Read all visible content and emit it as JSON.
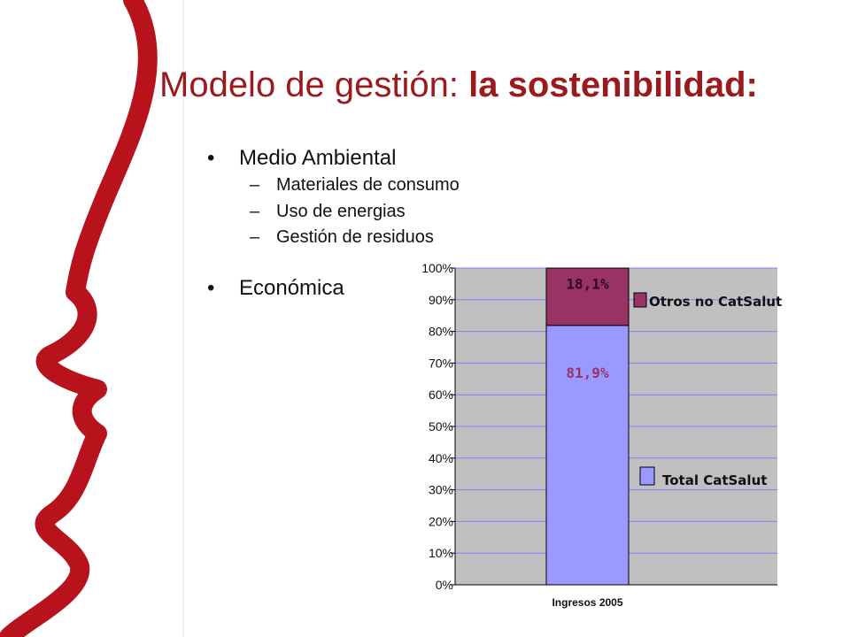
{
  "slide": {
    "title_regular": "Modelo de gestión: ",
    "title_bold": "la sostenibilidad:"
  },
  "bullets": {
    "b1": "Medio Ambiental",
    "sub1": "Materiales de consumo",
    "sub2": "Uso de energias",
    "sub3": "Gestión de residuos",
    "b2": "Económica",
    "bullet_char": "•",
    "dash_char": "–"
  },
  "colors": {
    "accent": "#9b1a1e",
    "series_otros": "#993366",
    "series_catsalut": "#9999ff",
    "plot_bg": "#c0c0c0",
    "gridline": "#7f7fff",
    "label_text": "#993366"
  },
  "chart_data": {
    "type": "bar",
    "stacked": true,
    "categories": [
      "Ingresos 2005"
    ],
    "series": [
      {
        "name": "Total CatSalut",
        "values": [
          81.9
        ],
        "label": "81,9%"
      },
      {
        "name": "Otros no CatSalut",
        "values": [
          18.1
        ],
        "label": "18,1%"
      }
    ],
    "yticks": [
      "0%",
      "10%",
      "20%",
      "30%",
      "40%",
      "50%",
      "60%",
      "70%",
      "80%",
      "90%",
      "100%"
    ],
    "ylim": [
      0,
      100
    ],
    "grid": true,
    "legend_position": "right"
  }
}
